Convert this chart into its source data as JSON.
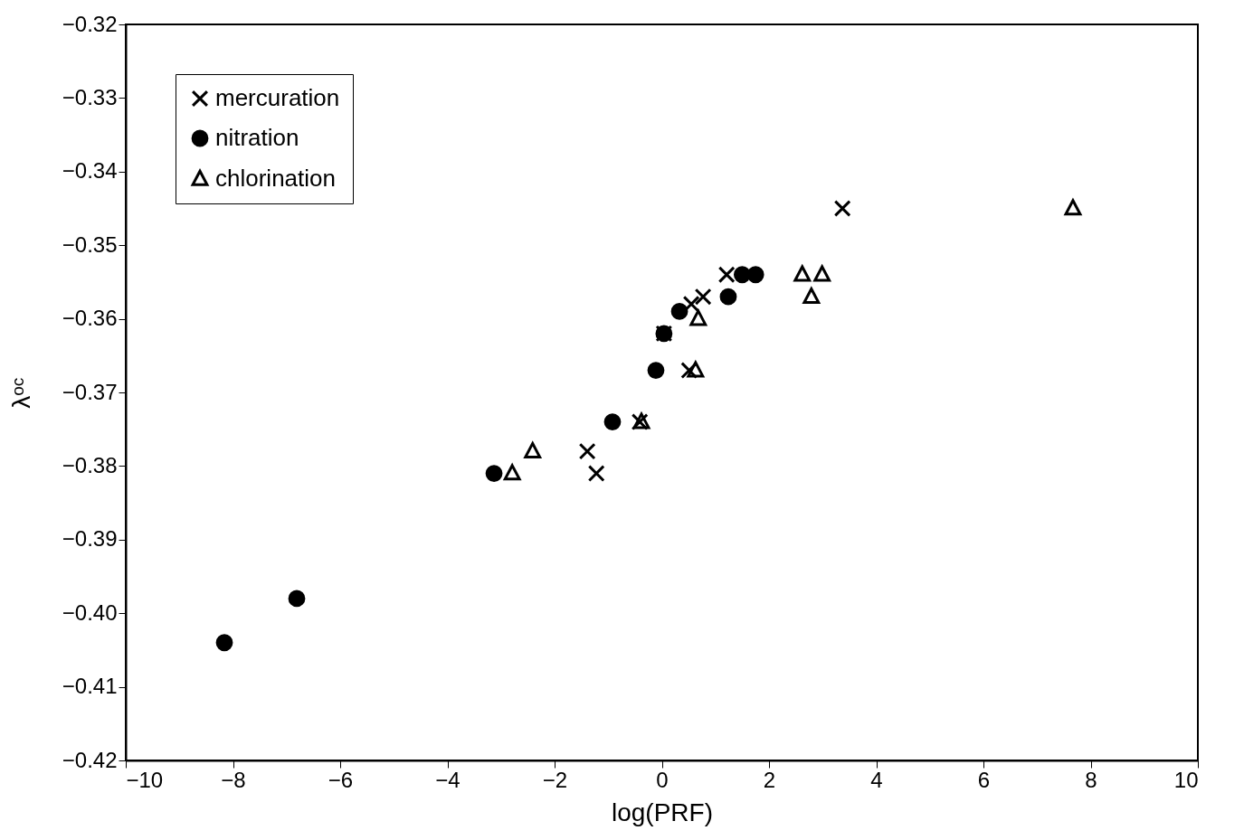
{
  "chart_data": {
    "type": "scatter",
    "xlabel": "log(PRF)",
    "ylabel": "λᵒᶜ",
    "xlim": [
      -10,
      10
    ],
    "ylim": [
      -0.42,
      -0.32
    ],
    "xticks": [
      -10,
      -8,
      -6,
      -4,
      -2,
      0,
      2,
      4,
      6,
      8,
      10
    ],
    "yticks": [
      -0.42,
      -0.41,
      {
        "value": -0.4,
        "label": "−0.40"
      },
      -0.39,
      -0.38,
      -0.37,
      -0.36,
      -0.35,
      -0.34,
      -0.33,
      -0.32
    ],
    "grid": false,
    "legend": "top left",
    "series": [
      {
        "name": "mercuration",
        "color": "#000000",
        "marker": "cross",
        "x": [
          3.37,
          1.21,
          0.55,
          0.77,
          0.04,
          0.51,
          -0.41,
          -1.39,
          -1.22
        ],
        "values": [
          -0.345,
          -0.354,
          -0.358,
          -0.357,
          -0.362,
          -0.367,
          -0.374,
          -0.378,
          -0.381
        ]
      },
      {
        "name": "nitration",
        "color": "#000000",
        "marker": "circle",
        "x": [
          1.75,
          1.5,
          1.24,
          0.33,
          0.04,
          -0.11,
          -0.92,
          -3.13,
          -6.81,
          -8.16
        ],
        "values": [
          -0.354,
          -0.354,
          -0.357,
          -0.359,
          -0.362,
          -0.367,
          -0.374,
          -0.381,
          -0.398,
          -0.404
        ]
      },
      {
        "name": "chlorination",
        "color": "#000000",
        "marker": "triangle",
        "x": [
          7.67,
          2.62,
          2.99,
          2.79,
          0.68,
          0.63,
          -0.38,
          -2.41,
          -2.79
        ],
        "values": [
          -0.345,
          -0.354,
          -0.354,
          -0.357,
          -0.36,
          -0.367,
          -0.374,
          -0.378,
          -0.381
        ]
      }
    ]
  }
}
